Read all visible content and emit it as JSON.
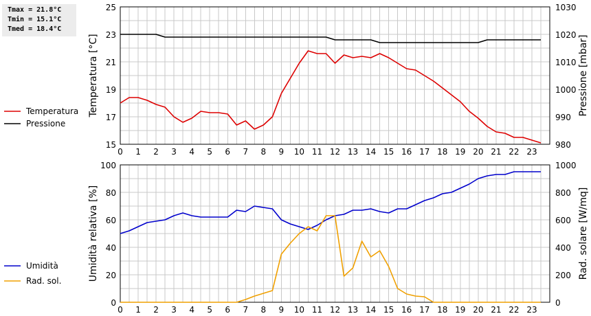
{
  "stats": {
    "tmax": "Tmax = 21.8°C",
    "tmin": "Tmin = 15.1°C",
    "tmed": "Tmed = 18.4°C"
  },
  "colors": {
    "temperature": "#dd0000",
    "pressure": "#000000",
    "humidity": "#0000cc",
    "radiation": "#f0a000",
    "grid": "#c8c8c8"
  },
  "chart_data": [
    {
      "type": "line",
      "x": [
        0,
        0.5,
        1,
        1.5,
        2,
        2.5,
        3,
        3.5,
        4,
        4.5,
        5,
        5.5,
        6,
        6.5,
        7,
        7.5,
        8,
        8.5,
        9,
        9.5,
        10,
        10.5,
        11,
        11.5,
        12,
        12.5,
        13,
        13.5,
        14,
        14.5,
        15,
        15.5,
        16,
        16.5,
        17,
        17.5,
        18,
        18.5,
        19,
        19.5,
        20,
        20.5,
        21,
        21.5,
        22,
        22.5,
        23,
        23.5
      ],
      "x_ticks": [
        0,
        1,
        2,
        3,
        4,
        5,
        6,
        7,
        8,
        9,
        10,
        11,
        12,
        13,
        14,
        15,
        16,
        17,
        18,
        19,
        20,
        21,
        22,
        23
      ],
      "xlim": [
        0,
        24
      ],
      "ylabel": "Temperatura [°C]",
      "ylim": [
        15,
        25
      ],
      "y_ticks": [
        15,
        17,
        19,
        21,
        23,
        25
      ],
      "y2label": "Pressione [mbar]",
      "y2lim": [
        980,
        1030
      ],
      "y2_ticks": [
        980,
        990,
        1000,
        1010,
        1020,
        1030
      ],
      "grid": true,
      "legend_position": "left of plot, bottom",
      "series": [
        {
          "name": "Temperatura",
          "axis": "left",
          "values": [
            18.0,
            18.4,
            18.4,
            18.2,
            17.9,
            17.7,
            17.0,
            16.6,
            16.9,
            17.4,
            17.3,
            17.3,
            17.2,
            16.4,
            16.7,
            16.1,
            16.4,
            17.0,
            18.7,
            19.8,
            20.9,
            21.8,
            21.6,
            21.6,
            20.9,
            21.5,
            21.3,
            21.4,
            21.3,
            21.6,
            21.3,
            20.9,
            20.5,
            20.4,
            20.0,
            19.6,
            19.1,
            18.6,
            18.1,
            17.4,
            16.9,
            16.3,
            15.9,
            15.8,
            15.5,
            15.5,
            15.3,
            15.1
          ]
        },
        {
          "name": "Pressione",
          "axis": "right",
          "values": [
            1020,
            1020,
            1020,
            1020,
            1020,
            1019,
            1019,
            1019,
            1019,
            1019,
            1019,
            1019,
            1019,
            1019,
            1019,
            1019,
            1019,
            1019,
            1019,
            1019,
            1019,
            1019,
            1019,
            1019,
            1018,
            1018,
            1018,
            1018,
            1018,
            1017,
            1017,
            1017,
            1017,
            1017,
            1017,
            1017,
            1017,
            1017,
            1017,
            1017,
            1017,
            1018,
            1018,
            1018,
            1018,
            1018,
            1018,
            1018
          ]
        }
      ]
    },
    {
      "type": "line",
      "x": [
        0,
        0.5,
        1,
        1.5,
        2,
        2.5,
        3,
        3.5,
        4,
        4.5,
        5,
        5.5,
        6,
        6.5,
        7,
        7.5,
        8,
        8.5,
        9,
        9.5,
        10,
        10.5,
        11,
        11.5,
        12,
        12.5,
        13,
        13.5,
        14,
        14.5,
        15,
        15.5,
        16,
        16.5,
        17,
        17.5,
        18,
        18.5,
        19,
        19.5,
        20,
        20.5,
        21,
        21.5,
        22,
        22.5,
        23,
        23.5
      ],
      "x_ticks": [
        0,
        1,
        2,
        3,
        4,
        5,
        6,
        7,
        8,
        9,
        10,
        11,
        12,
        13,
        14,
        15,
        16,
        17,
        18,
        19,
        20,
        21,
        22,
        23
      ],
      "xlim": [
        0,
        24
      ],
      "ylabel": "Umidità relativa [%]",
      "ylim": [
        0,
        100
      ],
      "y_ticks": [
        0,
        20,
        40,
        60,
        80,
        100
      ],
      "y2label": "Rad. solare [W/mq]",
      "y2lim": [
        0,
        1000
      ],
      "y2_ticks": [
        0,
        200,
        400,
        600,
        800,
        1000
      ],
      "grid": true,
      "legend_position": "left of plot, bottom",
      "series": [
        {
          "name": "Umidità",
          "axis": "left",
          "values": [
            50,
            52,
            55,
            58,
            59,
            60,
            63,
            65,
            63,
            62,
            62,
            62,
            62,
            67,
            66,
            70,
            69,
            68,
            60,
            57,
            55,
            53,
            56,
            60,
            63,
            64,
            67,
            67,
            68,
            66,
            65,
            68,
            68,
            71,
            74,
            76,
            79,
            80,
            83,
            86,
            90,
            92,
            93,
            93,
            95,
            95,
            95,
            95
          ]
        },
        {
          "name": "Rad. sol.",
          "axis": "right",
          "values": [
            0,
            0,
            0,
            0,
            0,
            0,
            0,
            0,
            0,
            0,
            0,
            0,
            0,
            0,
            20,
            45,
            65,
            85,
            350,
            430,
            500,
            550,
            520,
            630,
            630,
            190,
            250,
            445,
            330,
            375,
            260,
            100,
            60,
            45,
            40,
            0,
            0,
            0,
            0,
            0,
            0,
            0,
            0,
            0,
            0,
            0,
            0,
            0
          ]
        }
      ]
    }
  ]
}
